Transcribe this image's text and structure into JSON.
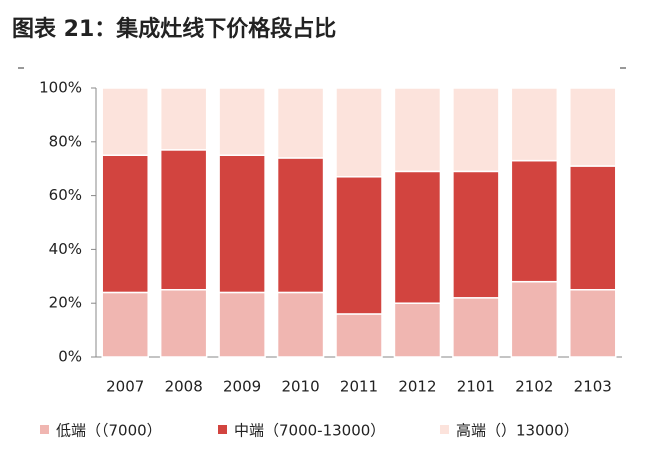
{
  "chart_data": {
    "type": "stacked_bar",
    "title": "图表 21：集成灶线下价格段占比",
    "categories": [
      "2007",
      "2008",
      "2009",
      "2010",
      "2011",
      "2012",
      "2101",
      "2102",
      "2103"
    ],
    "series": [
      {
        "name": "低端（（7000）",
        "color": "#f0b6b1",
        "values": [
          24,
          25,
          24,
          24,
          16,
          20,
          22,
          28,
          25
        ]
      },
      {
        "name": "中端（7000-13000）",
        "color": "#d2443f",
        "values": [
          51,
          52,
          51,
          50,
          51,
          49,
          47,
          45,
          46
        ]
      },
      {
        "name": "高端（）13000）",
        "color": "#fce3dc",
        "values": [
          25,
          23,
          25,
          26,
          33,
          31,
          31,
          27,
          29
        ]
      }
    ],
    "ylim": [
      0,
      100
    ],
    "yticks": [
      {
        "value": 0,
        "label": "0%"
      },
      {
        "value": 20,
        "label": "20%"
      },
      {
        "value": 40,
        "label": "40%"
      },
      {
        "value": 60,
        "label": "60%"
      },
      {
        "value": 80,
        "label": "80%"
      },
      {
        "value": 100,
        "label": "100%"
      }
    ]
  }
}
